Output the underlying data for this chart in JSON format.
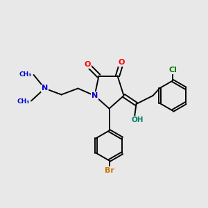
{
  "background_color": "#e8e8e8",
  "bond_color": "#000000",
  "figsize": [
    3.0,
    3.0
  ],
  "dpi": 100,
  "atom_colors": {
    "O": "#ff0000",
    "N": "#0000cc",
    "Br": "#cc7700",
    "Cl": "#007700",
    "C": "#000000",
    "OH": "#008060"
  },
  "bond_lw": 1.4,
  "font_size": 7.5
}
